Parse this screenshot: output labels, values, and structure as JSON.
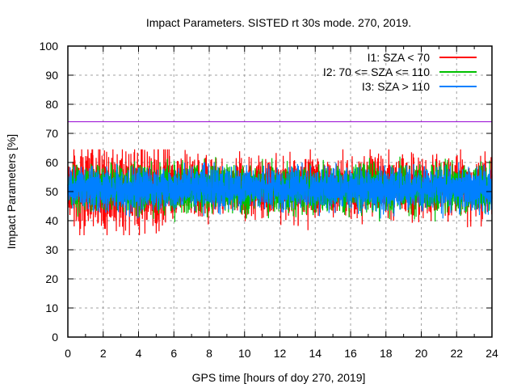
{
  "chart_data": {
    "type": "line",
    "title": "Impact Parameters. SISTED rt 30s mode. 270, 2019.",
    "xlabel": "GPS time [hours of doy 270, 2019]",
    "ylabel": "Impact Parameters [%]",
    "xlim": [
      0,
      24
    ],
    "ylim": [
      0,
      100
    ],
    "xticks": [
      0,
      2,
      4,
      6,
      8,
      10,
      12,
      14,
      16,
      18,
      20,
      22,
      24
    ],
    "yticks": [
      0,
      10,
      20,
      30,
      40,
      50,
      60,
      70,
      80,
      90,
      100
    ],
    "grid": true,
    "legend_position": "top-right",
    "reference_line": {
      "y": 74,
      "color": "#9400d3"
    },
    "series": [
      {
        "name": "I1: SZA < 70",
        "color": "#ff0000",
        "mean": 51.5,
        "spread": 5.0,
        "min": 35,
        "max": 64.5,
        "sample_interval_s": 30,
        "note": "dense noisy series, larger amplitude 0-6 h"
      },
      {
        "name": "I2: 70 <= SZA <= 110",
        "color": "#00c000",
        "mean": 51,
        "spread": 4.0,
        "min": 39.5,
        "max": 62,
        "sample_interval_s": 30
      },
      {
        "name": "I3: SZA > 110",
        "color": "#0080ff",
        "mean": 51,
        "spread": 3.6,
        "min": 38,
        "max": 60,
        "sample_interval_s": 30
      }
    ]
  }
}
